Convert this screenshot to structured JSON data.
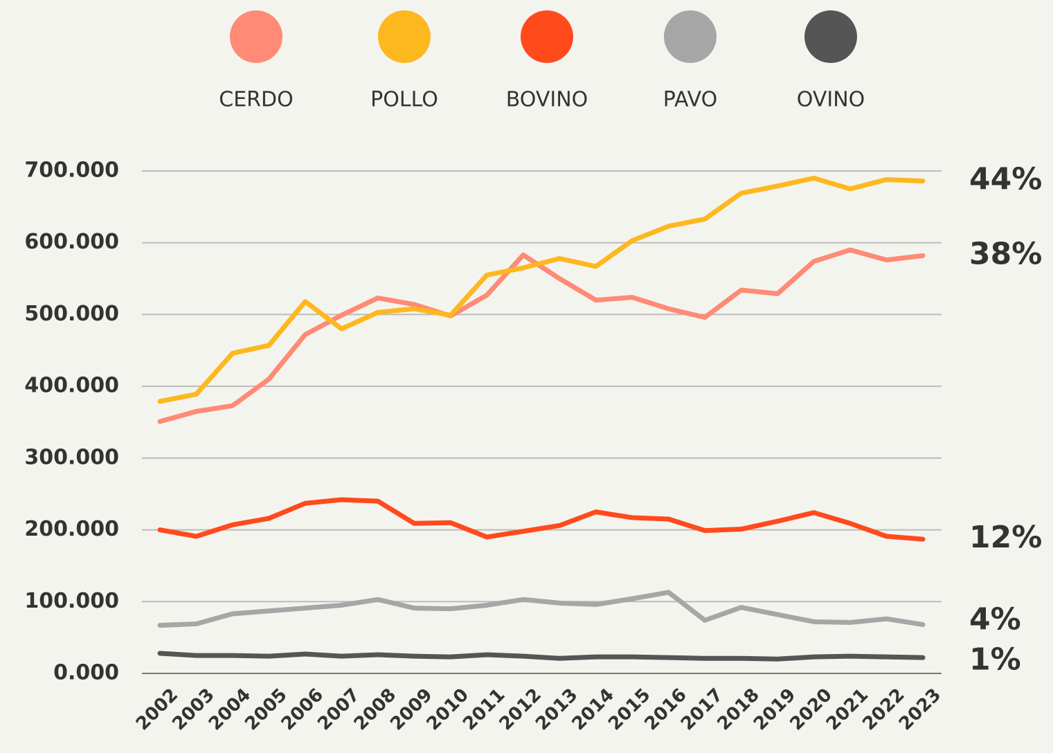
{
  "chart_data": {
    "type": "line",
    "x": [
      2002,
      2003,
      2004,
      2005,
      2006,
      2007,
      2008,
      2009,
      2010,
      2011,
      2012,
      2013,
      2014,
      2015,
      2016,
      2017,
      2018,
      2019,
      2020,
      2021,
      2022,
      2023
    ],
    "series": [
      {
        "name": "CERDO",
        "color": "#FF8A75",
        "end_label": "38%",
        "values": [
          351000,
          365000,
          373000,
          410000,
          472000,
          499000,
          523000,
          514000,
          498000,
          527000,
          583000,
          550000,
          520000,
          524000,
          508000,
          496000,
          534000,
          529000,
          574000,
          590000,
          576000,
          582000
        ]
      },
      {
        "name": "POLLO",
        "color": "#FDB820",
        "end_label": "44%",
        "values": [
          379000,
          389000,
          446000,
          457000,
          518000,
          480000,
          503000,
          508000,
          499000,
          555000,
          565000,
          578000,
          567000,
          603000,
          623000,
          633000,
          669000,
          679000,
          690000,
          675000,
          688000,
          686000
        ]
      },
      {
        "name": "BOVINO",
        "color": "#FF4A1C",
        "end_label": "12%",
        "values": [
          200000,
          191000,
          207000,
          216000,
          237000,
          242000,
          240000,
          209000,
          210000,
          190000,
          198000,
          206000,
          225000,
          217000,
          215000,
          199000,
          201000,
          212000,
          224000,
          209000,
          191000,
          187000
        ]
      },
      {
        "name": "PAVO",
        "color": "#A6A6A6",
        "end_label": "4%",
        "values": [
          67000,
          69000,
          83000,
          87000,
          91000,
          95000,
          103000,
          91000,
          90000,
          95000,
          103000,
          98000,
          96000,
          104000,
          113000,
          74000,
          92000,
          82000,
          72000,
          71000,
          76000,
          68000
        ]
      },
      {
        "name": "OVINO",
        "color": "#555555",
        "end_label": "1%",
        "values": [
          28000,
          25000,
          25000,
          24000,
          27000,
          24000,
          26000,
          24000,
          23000,
          26000,
          24000,
          21000,
          23000,
          23000,
          22000,
          21000,
          21000,
          20000,
          23000,
          24000,
          23000,
          22000
        ]
      }
    ],
    "ylim": [
      0,
      700000
    ],
    "yticks": [
      {
        "value": 0,
        "label": "0.000"
      },
      {
        "value": 100000,
        "label": "100.000"
      },
      {
        "value": 200000,
        "label": "200.000"
      },
      {
        "value": 300000,
        "label": "300.000"
      },
      {
        "value": 400000,
        "label": "400.000"
      },
      {
        "value": 500000,
        "label": "500.000"
      },
      {
        "value": 600000,
        "label": "600.000"
      },
      {
        "value": 700000,
        "label": "700.000"
      }
    ],
    "xlim": [
      2002,
      2023
    ],
    "grid": true
  }
}
